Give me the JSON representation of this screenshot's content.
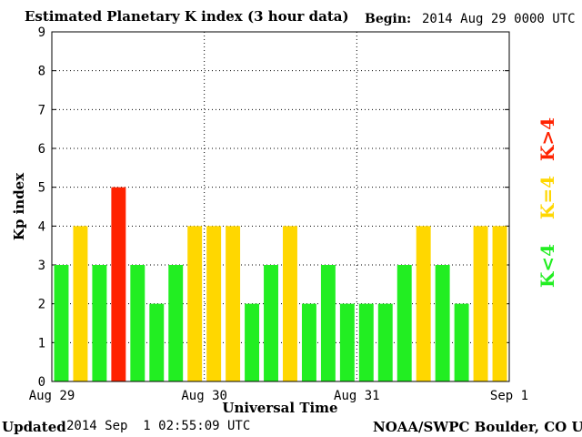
{
  "header": {
    "title": "Estimated Planetary K index (3 hour data)",
    "begin_label": "Begin:",
    "begin_value": "2014 Aug 29 0000 UTC"
  },
  "footer": {
    "updated_label": "Updated",
    "updated_value": "2014 Sep  1 02:55:09 UTC",
    "source": "NOAA/SWPC Boulder, CO USA"
  },
  "legend": {
    "low": {
      "text": "K<4",
      "color": "#22ee22"
    },
    "mid": {
      "text": "K=4",
      "color": "#ffd700"
    },
    "high": {
      "text": "K>4",
      "color": "#ff2200"
    }
  },
  "colors": {
    "low": "#22ee22",
    "mid": "#ffd700",
    "high": "#ff2200",
    "grid": "#000000"
  },
  "chart_data": {
    "type": "bar",
    "title": "Estimated Planetary K index (3 hour data)",
    "xlabel": "Universal Time",
    "ylabel": "Kp index",
    "ylim": [
      0,
      9
    ],
    "yticks": [
      0,
      1,
      2,
      3,
      4,
      5,
      6,
      7,
      8,
      9
    ],
    "xtick_labels": [
      "Aug 29",
      "Aug 30",
      "Aug 31",
      "Sep 1"
    ],
    "grid": "dotted, at each x tick and each y tick",
    "legend_placement": "right, vertical",
    "bars_per_day": 8,
    "values": [
      3,
      4,
      3,
      5,
      3,
      2,
      3,
      4,
      4,
      4,
      2,
      3,
      4,
      2,
      3,
      2,
      2,
      2,
      3,
      4,
      3,
      2,
      4,
      4
    ]
  }
}
